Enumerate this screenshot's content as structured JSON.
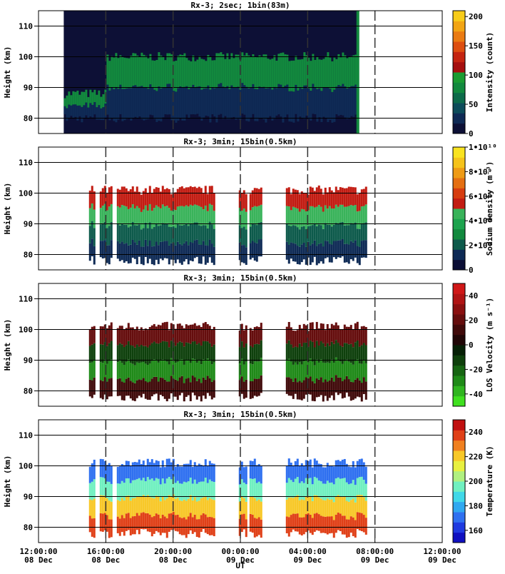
{
  "chart_data": [
    {
      "type": "heatmap",
      "title": "Rx-3;   2sec; 1bin(83m)",
      "ylabel": "Height (km)",
      "colorbar_label": "Intensity (count)",
      "ylim": [
        75,
        115
      ],
      "yticks": [
        "80",
        "90",
        "100",
        "110"
      ],
      "colorbar_range": [
        0,
        210
      ],
      "colorbar_ticks": [
        "0",
        "50",
        "100",
        "150",
        "200"
      ],
      "colors": [
        "#0d1036",
        "#0f2a55",
        "#0d4c5a",
        "#0d6b4a",
        "#12893e",
        "#1b9c32",
        "#a50f0f",
        "#c42410",
        "#dd4e10",
        "#ea7b12",
        "#f2a514",
        "#f7cc1a"
      ],
      "data_hours": [
        13.5,
        7.0
      ],
      "gaps": [],
      "background_color": "#0d1036",
      "layer_colors": [
        "#0f2a55",
        "#12893e"
      ],
      "layer_alt": [
        80,
        100
      ],
      "stripe_color": "#12893e",
      "stripe_hour": 6.9
    },
    {
      "type": "heatmap",
      "title": "Rx-3; 3min; 15bin(0.5km)",
      "ylabel": "Height (km)",
      "colorbar_label": "Sodium density (m⁻³)",
      "ylim": [
        75,
        115
      ],
      "yticks": [
        "80",
        "90",
        "100",
        "110"
      ],
      "colorbar_range": [
        0,
        10000000000
      ],
      "colorbar_ticks": [
        "0",
        "2•10⁹",
        "4•10⁹",
        "6•10⁹",
        "8•10⁹",
        "1•10¹⁰"
      ],
      "colors": [
        "#0b0e35",
        "#0e2a55",
        "#0d5a4b",
        "#12893e",
        "#1da34e",
        "#39b35a",
        "#c21c12",
        "#d63d10",
        "#e46f12",
        "#ee9b16",
        "#f5c31b",
        "#f9e320"
      ],
      "data_hours": [
        15,
        7.5
      ],
      "gaps": [
        [
          15.3,
          15.6
        ],
        [
          16.3,
          16.6
        ],
        [
          22.5,
          23.8
        ],
        [
          24.3,
          24.5
        ],
        [
          1.2,
          2.6
        ]
      ],
      "layer_colors": [
        "#0e2a55",
        "#0d5a4b",
        "#39b35a",
        "#c21c12"
      ],
      "layer_alt": [
        78,
        101
      ]
    },
    {
      "type": "heatmap",
      "title": "Rx-3; 3min; 15bin(0.5km)",
      "ylabel": "Height (km)",
      "colorbar_label": "LOS Velocity (m s⁻¹)",
      "ylim": [
        75,
        115
      ],
      "yticks": [
        "80",
        "90",
        "100",
        "110"
      ],
      "colorbar_range": [
        -50,
        50
      ],
      "colorbar_ticks": [
        "-40",
        "-20",
        "0",
        "20",
        "40"
      ],
      "colors": [
        "#40e020",
        "#30b520",
        "#1f8a18",
        "#166512",
        "#0e400c",
        "#062006",
        "#200606",
        "#400a0a",
        "#650d0d",
        "#8a1010",
        "#b01414",
        "#d01818"
      ],
      "data_hours": [
        15,
        7.5
      ],
      "gaps": [
        [
          15.3,
          15.6
        ],
        [
          16.3,
          16.6
        ],
        [
          22.5,
          23.8
        ],
        [
          24.3,
          24.5
        ],
        [
          1.2,
          2.6
        ]
      ],
      "layer_colors": [
        "#400a0a",
        "#1f8a18",
        "#0e400c",
        "#650d0d"
      ],
      "layer_alt": [
        78,
        101
      ]
    },
    {
      "type": "heatmap",
      "title": "Rx-3; 3min; 15bin(0.5km)",
      "ylabel": "Height (km)",
      "colorbar_label": "Temperature (K)",
      "ylim": [
        75,
        115
      ],
      "yticks": [
        "80",
        "90",
        "100",
        "110"
      ],
      "colorbar_range": [
        150,
        250
      ],
      "colorbar_ticks": [
        "160",
        "180",
        "200",
        "220",
        "240"
      ],
      "colors": [
        "#1010c0",
        "#1f3ae0",
        "#2f70f0",
        "#30a8f0",
        "#40d8e8",
        "#70f0c0",
        "#b0f080",
        "#e8f040",
        "#f8c828",
        "#f08020",
        "#e04018",
        "#c01010"
      ],
      "data_hours": [
        15,
        7.5
      ],
      "gaps": [
        [
          15.3,
          15.6
        ],
        [
          16.3,
          16.6
        ],
        [
          22.5,
          23.8
        ],
        [
          24.3,
          24.5
        ],
        [
          1.2,
          2.6
        ]
      ],
      "layer_colors": [
        "#e04018",
        "#f8c828",
        "#70f0c0",
        "#2f70f0"
      ],
      "layer_alt": [
        78,
        101
      ]
    }
  ],
  "xaxis": {
    "label": "UT",
    "range_hours": [
      12,
      36
    ],
    "ticks": [
      {
        "time": "12:00:00",
        "date": "08 Dec"
      },
      {
        "time": "16:00:00",
        "date": "08 Dec"
      },
      {
        "time": "20:00:00",
        "date": "08 Dec"
      },
      {
        "time": "00:00:00",
        "date": "09 Dec"
      },
      {
        "time": "04:00:00",
        "date": "09 Dec"
      },
      {
        "time": "08:00:00",
        "date": "09 Dec"
      },
      {
        "time": "12:00:00",
        "date": "09 Dec"
      }
    ]
  }
}
